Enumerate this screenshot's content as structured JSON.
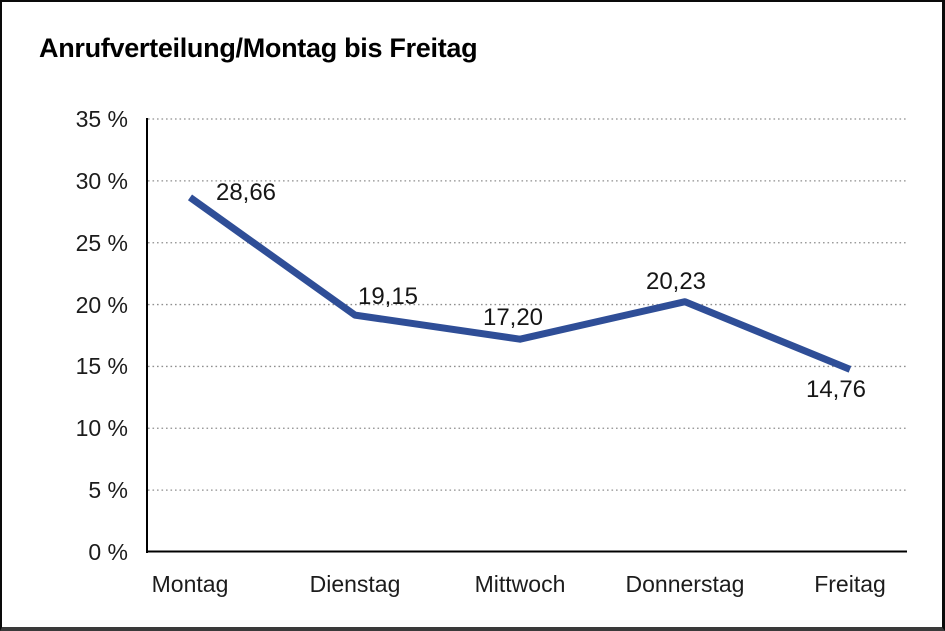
{
  "title": "Anrufverteilung/Montag bis Freitag",
  "colors": {
    "line": "#2F4E97",
    "grid": "#8f8f8f",
    "axis": "#000000",
    "text": "#1c1c1c",
    "background": "#ffffff"
  },
  "chart_data": {
    "type": "line",
    "title": "Anrufverteilung/Montag bis Freitag",
    "categories": [
      "Montag",
      "Dienstag",
      "Mittwoch",
      "Donnerstag",
      "Freitag"
    ],
    "values": [
      28.66,
      19.15,
      17.2,
      20.23,
      14.76
    ],
    "value_labels": [
      "28,66",
      "19,15",
      "17,20",
      "20,23",
      "14,76"
    ],
    "xlabel": "",
    "ylabel": "",
    "ylim": [
      0,
      35
    ],
    "ytick_step": 5,
    "ytick_labels": [
      "0 %",
      "5 %",
      "10 %",
      "15 %",
      "20 %",
      "25 %",
      "30 %",
      "35 %"
    ],
    "grid": "horizontal-dotted",
    "legend": "none",
    "markers": "none",
    "line_color": "#2F4E97"
  }
}
